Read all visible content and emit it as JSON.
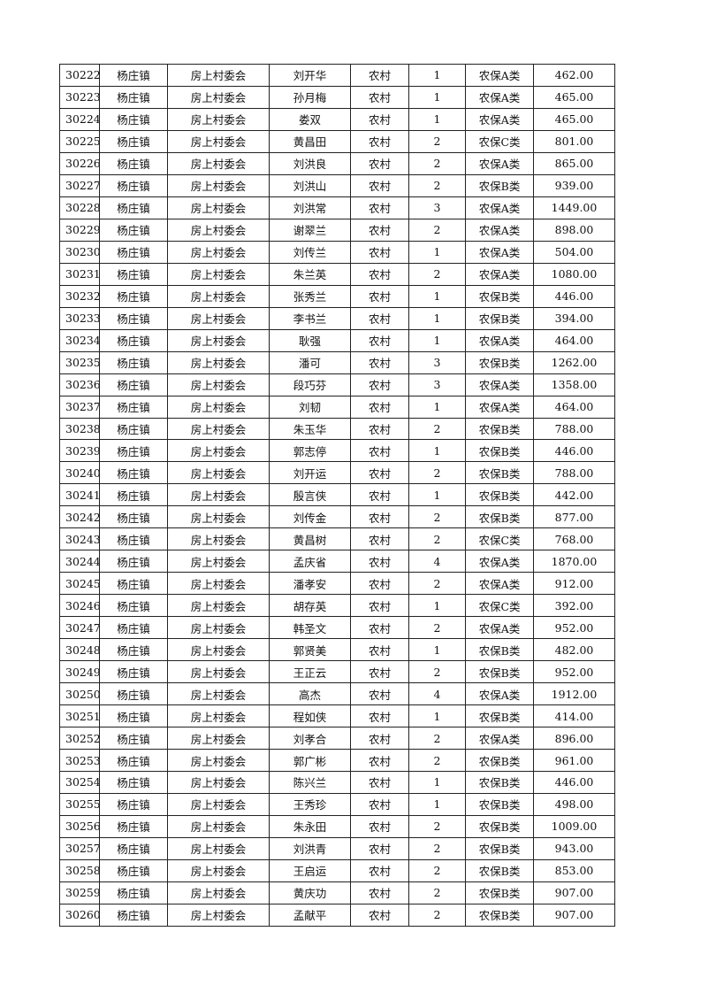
{
  "table": {
    "rows": [
      [
        "30222",
        "杨庄镇",
        "房上村委会",
        "刘开华",
        "农村",
        "1",
        "农保A类",
        "462.00"
      ],
      [
        "30223",
        "杨庄镇",
        "房上村委会",
        "孙月梅",
        "农村",
        "1",
        "农保A类",
        "465.00"
      ],
      [
        "30224",
        "杨庄镇",
        "房上村委会",
        "娄双",
        "农村",
        "1",
        "农保A类",
        "465.00"
      ],
      [
        "30225",
        "杨庄镇",
        "房上村委会",
        "黄昌田",
        "农村",
        "2",
        "农保C类",
        "801.00"
      ],
      [
        "30226",
        "杨庄镇",
        "房上村委会",
        "刘洪良",
        "农村",
        "2",
        "农保A类",
        "865.00"
      ],
      [
        "30227",
        "杨庄镇",
        "房上村委会",
        "刘洪山",
        "农村",
        "2",
        "农保B类",
        "939.00"
      ],
      [
        "30228",
        "杨庄镇",
        "房上村委会",
        "刘洪常",
        "农村",
        "3",
        "农保A类",
        "1449.00"
      ],
      [
        "30229",
        "杨庄镇",
        "房上村委会",
        "谢翠兰",
        "农村",
        "2",
        "农保A类",
        "898.00"
      ],
      [
        "30230",
        "杨庄镇",
        "房上村委会",
        "刘传兰",
        "农村",
        "1",
        "农保A类",
        "504.00"
      ],
      [
        "30231",
        "杨庄镇",
        "房上村委会",
        "朱兰英",
        "农村",
        "2",
        "农保A类",
        "1080.00"
      ],
      [
        "30232",
        "杨庄镇",
        "房上村委会",
        "张秀兰",
        "农村",
        "1",
        "农保B类",
        "446.00"
      ],
      [
        "30233",
        "杨庄镇",
        "房上村委会",
        "李书兰",
        "农村",
        "1",
        "农保B类",
        "394.00"
      ],
      [
        "30234",
        "杨庄镇",
        "房上村委会",
        "耿强",
        "农村",
        "1",
        "农保A类",
        "464.00"
      ],
      [
        "30235",
        "杨庄镇",
        "房上村委会",
        "潘可",
        "农村",
        "3",
        "农保B类",
        "1262.00"
      ],
      [
        "30236",
        "杨庄镇",
        "房上村委会",
        "段巧芬",
        "农村",
        "3",
        "农保A类",
        "1358.00"
      ],
      [
        "30237",
        "杨庄镇",
        "房上村委会",
        "刘韧",
        "农村",
        "1",
        "农保A类",
        "464.00"
      ],
      [
        "30238",
        "杨庄镇",
        "房上村委会",
        "朱玉华",
        "农村",
        "2",
        "农保B类",
        "788.00"
      ],
      [
        "30239",
        "杨庄镇",
        "房上村委会",
        "郭志停",
        "农村",
        "1",
        "农保B类",
        "446.00"
      ],
      [
        "30240",
        "杨庄镇",
        "房上村委会",
        "刘开运",
        "农村",
        "2",
        "农保B类",
        "788.00"
      ],
      [
        "30241",
        "杨庄镇",
        "房上村委会",
        "殷言侠",
        "农村",
        "1",
        "农保B类",
        "442.00"
      ],
      [
        "30242",
        "杨庄镇",
        "房上村委会",
        "刘传金",
        "农村",
        "2",
        "农保B类",
        "877.00"
      ],
      [
        "30243",
        "杨庄镇",
        "房上村委会",
        "黄昌树",
        "农村",
        "2",
        "农保C类",
        "768.00"
      ],
      [
        "30244",
        "杨庄镇",
        "房上村委会",
        "孟庆省",
        "农村",
        "4",
        "农保A类",
        "1870.00"
      ],
      [
        "30245",
        "杨庄镇",
        "房上村委会",
        "潘孝安",
        "农村",
        "2",
        "农保A类",
        "912.00"
      ],
      [
        "30246",
        "杨庄镇",
        "房上村委会",
        "胡存英",
        "农村",
        "1",
        "农保C类",
        "392.00"
      ],
      [
        "30247",
        "杨庄镇",
        "房上村委会",
        "韩圣文",
        "农村",
        "2",
        "农保A类",
        "952.00"
      ],
      [
        "30248",
        "杨庄镇",
        "房上村委会",
        "郭贤美",
        "农村",
        "1",
        "农保B类",
        "482.00"
      ],
      [
        "30249",
        "杨庄镇",
        "房上村委会",
        "王正云",
        "农村",
        "2",
        "农保B类",
        "952.00"
      ],
      [
        "30250",
        "杨庄镇",
        "房上村委会",
        "高杰",
        "农村",
        "4",
        "农保A类",
        "1912.00"
      ],
      [
        "30251",
        "杨庄镇",
        "房上村委会",
        "程如侠",
        "农村",
        "1",
        "农保B类",
        "414.00"
      ],
      [
        "30252",
        "杨庄镇",
        "房上村委会",
        "刘孝合",
        "农村",
        "2",
        "农保A类",
        "896.00"
      ],
      [
        "30253",
        "杨庄镇",
        "房上村委会",
        "郭广彬",
        "农村",
        "2",
        "农保B类",
        "961.00"
      ],
      [
        "30254",
        "杨庄镇",
        "房上村委会",
        "陈兴兰",
        "农村",
        "1",
        "农保B类",
        "446.00"
      ],
      [
        "30255",
        "杨庄镇",
        "房上村委会",
        "王秀珍",
        "农村",
        "1",
        "农保B类",
        "498.00"
      ],
      [
        "30256",
        "杨庄镇",
        "房上村委会",
        "朱永田",
        "农村",
        "2",
        "农保B类",
        "1009.00"
      ],
      [
        "30257",
        "杨庄镇",
        "房上村委会",
        "刘洪青",
        "农村",
        "2",
        "农保B类",
        "943.00"
      ],
      [
        "30258",
        "杨庄镇",
        "房上村委会",
        "王启运",
        "农村",
        "2",
        "农保B类",
        "853.00"
      ],
      [
        "30259",
        "杨庄镇",
        "房上村委会",
        "黄庆功",
        "农村",
        "2",
        "农保B类",
        "907.00"
      ],
      [
        "30260",
        "杨庄镇",
        "房上村委会",
        "孟献平",
        "农村",
        "2",
        "农保B类",
        "907.00"
      ]
    ]
  }
}
